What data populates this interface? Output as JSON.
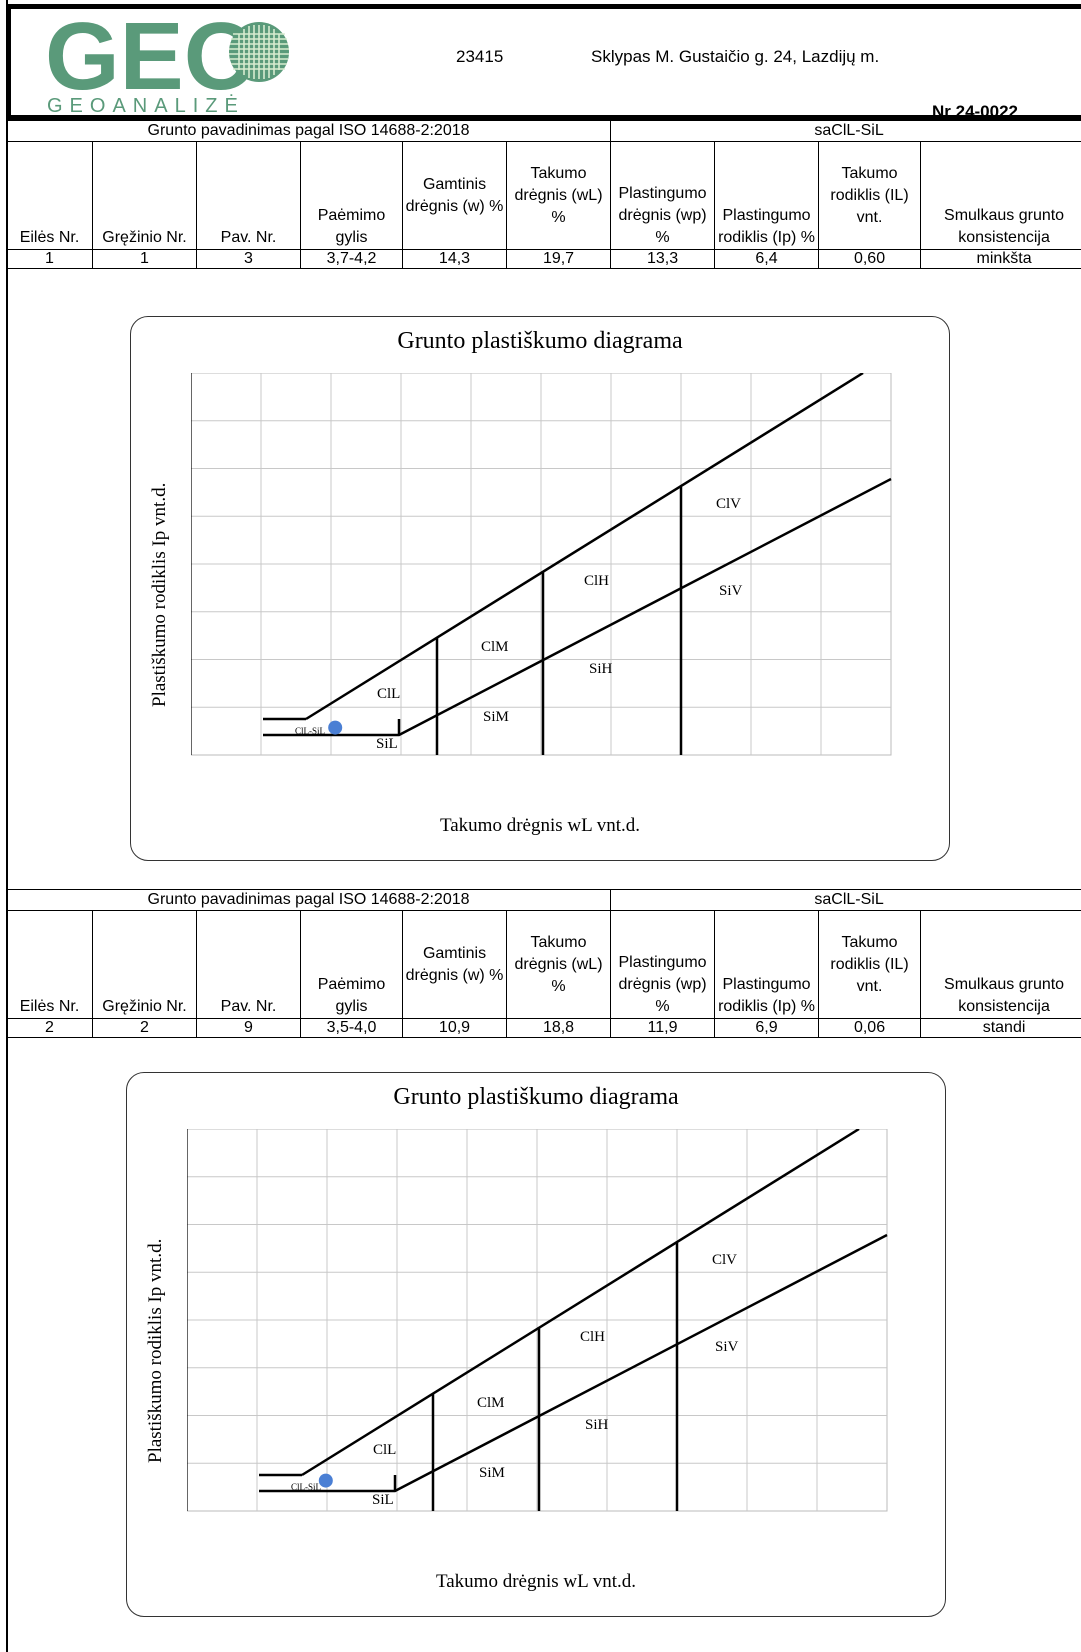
{
  "header": {
    "logo_main": "GEO",
    "logo_sub": "GEOANALIZĖ",
    "code": "23415",
    "site": "Sklypas M. Gustaičio g. 24, Lazdijų m.",
    "report_nr": "Nr 24-0022"
  },
  "colors": {
    "logo_green": "#5a9a7a",
    "logo_blue": "#3d7fb0",
    "point": "#4a7fd4"
  },
  "table_header": {
    "standard_title": "Grunto pavadinimas pagal ISO 14688-2:2018",
    "columns": [
      "Eilės Nr.",
      "Gręžinio Nr.",
      "Pav. Nr.",
      "Paėmimo gylis",
      "Gamtinis drėgnis (w) %",
      "Takumo drėgnis (wL) %",
      "Plastingumo drėgnis (wp) %",
      "Plastingumo rodiklis (Ip) %",
      "Takumo rodiklis (IL) vnt.",
      "Smulkaus grunto konsistencija"
    ]
  },
  "samples": [
    {
      "soil_name": "saClL-SiL",
      "values": [
        "1",
        "1",
        "3",
        "3,7-4,2",
        "14,3",
        "19,7",
        "13,3",
        "6,4",
        "0,60",
        "minkšta"
      ]
    },
    {
      "soil_name": "saClL-SiL",
      "values": [
        "2",
        "2",
        "9",
        "3,5-4,0",
        "10,9",
        "18,8",
        "11,9",
        "6,9",
        "0,06",
        "standi"
      ]
    }
  ],
  "chart_data": [
    {
      "type": "scatter",
      "title": "Grunto plastiškumo diagrama",
      "xlabel": "Takumo drėgnis wL vnt.d.",
      "ylabel": "Plastiškumo rodiklis Ip vnt.d.",
      "zones": [
        "ClL",
        "SiL",
        "ClM",
        "SiM",
        "ClH",
        "SiH",
        "ClV",
        "SiV",
        "ClL-SiL"
      ],
      "points": [
        {
          "x": 19.7,
          "y": 6.4
        }
      ],
      "grid": true
    },
    {
      "type": "scatter",
      "title": "Grunto plastiškumo diagrama",
      "xlabel": "Takumo drėgnis wL vnt.d.",
      "ylabel": "Plastiškumo rodiklis Ip vnt.d.",
      "zones": [
        "ClL",
        "SiL",
        "ClM",
        "SiM",
        "ClH",
        "SiH",
        "ClV",
        "SiV",
        "ClL-SiL"
      ],
      "points": [
        {
          "x": 18.8,
          "y": 6.9
        }
      ],
      "grid": true
    }
  ]
}
